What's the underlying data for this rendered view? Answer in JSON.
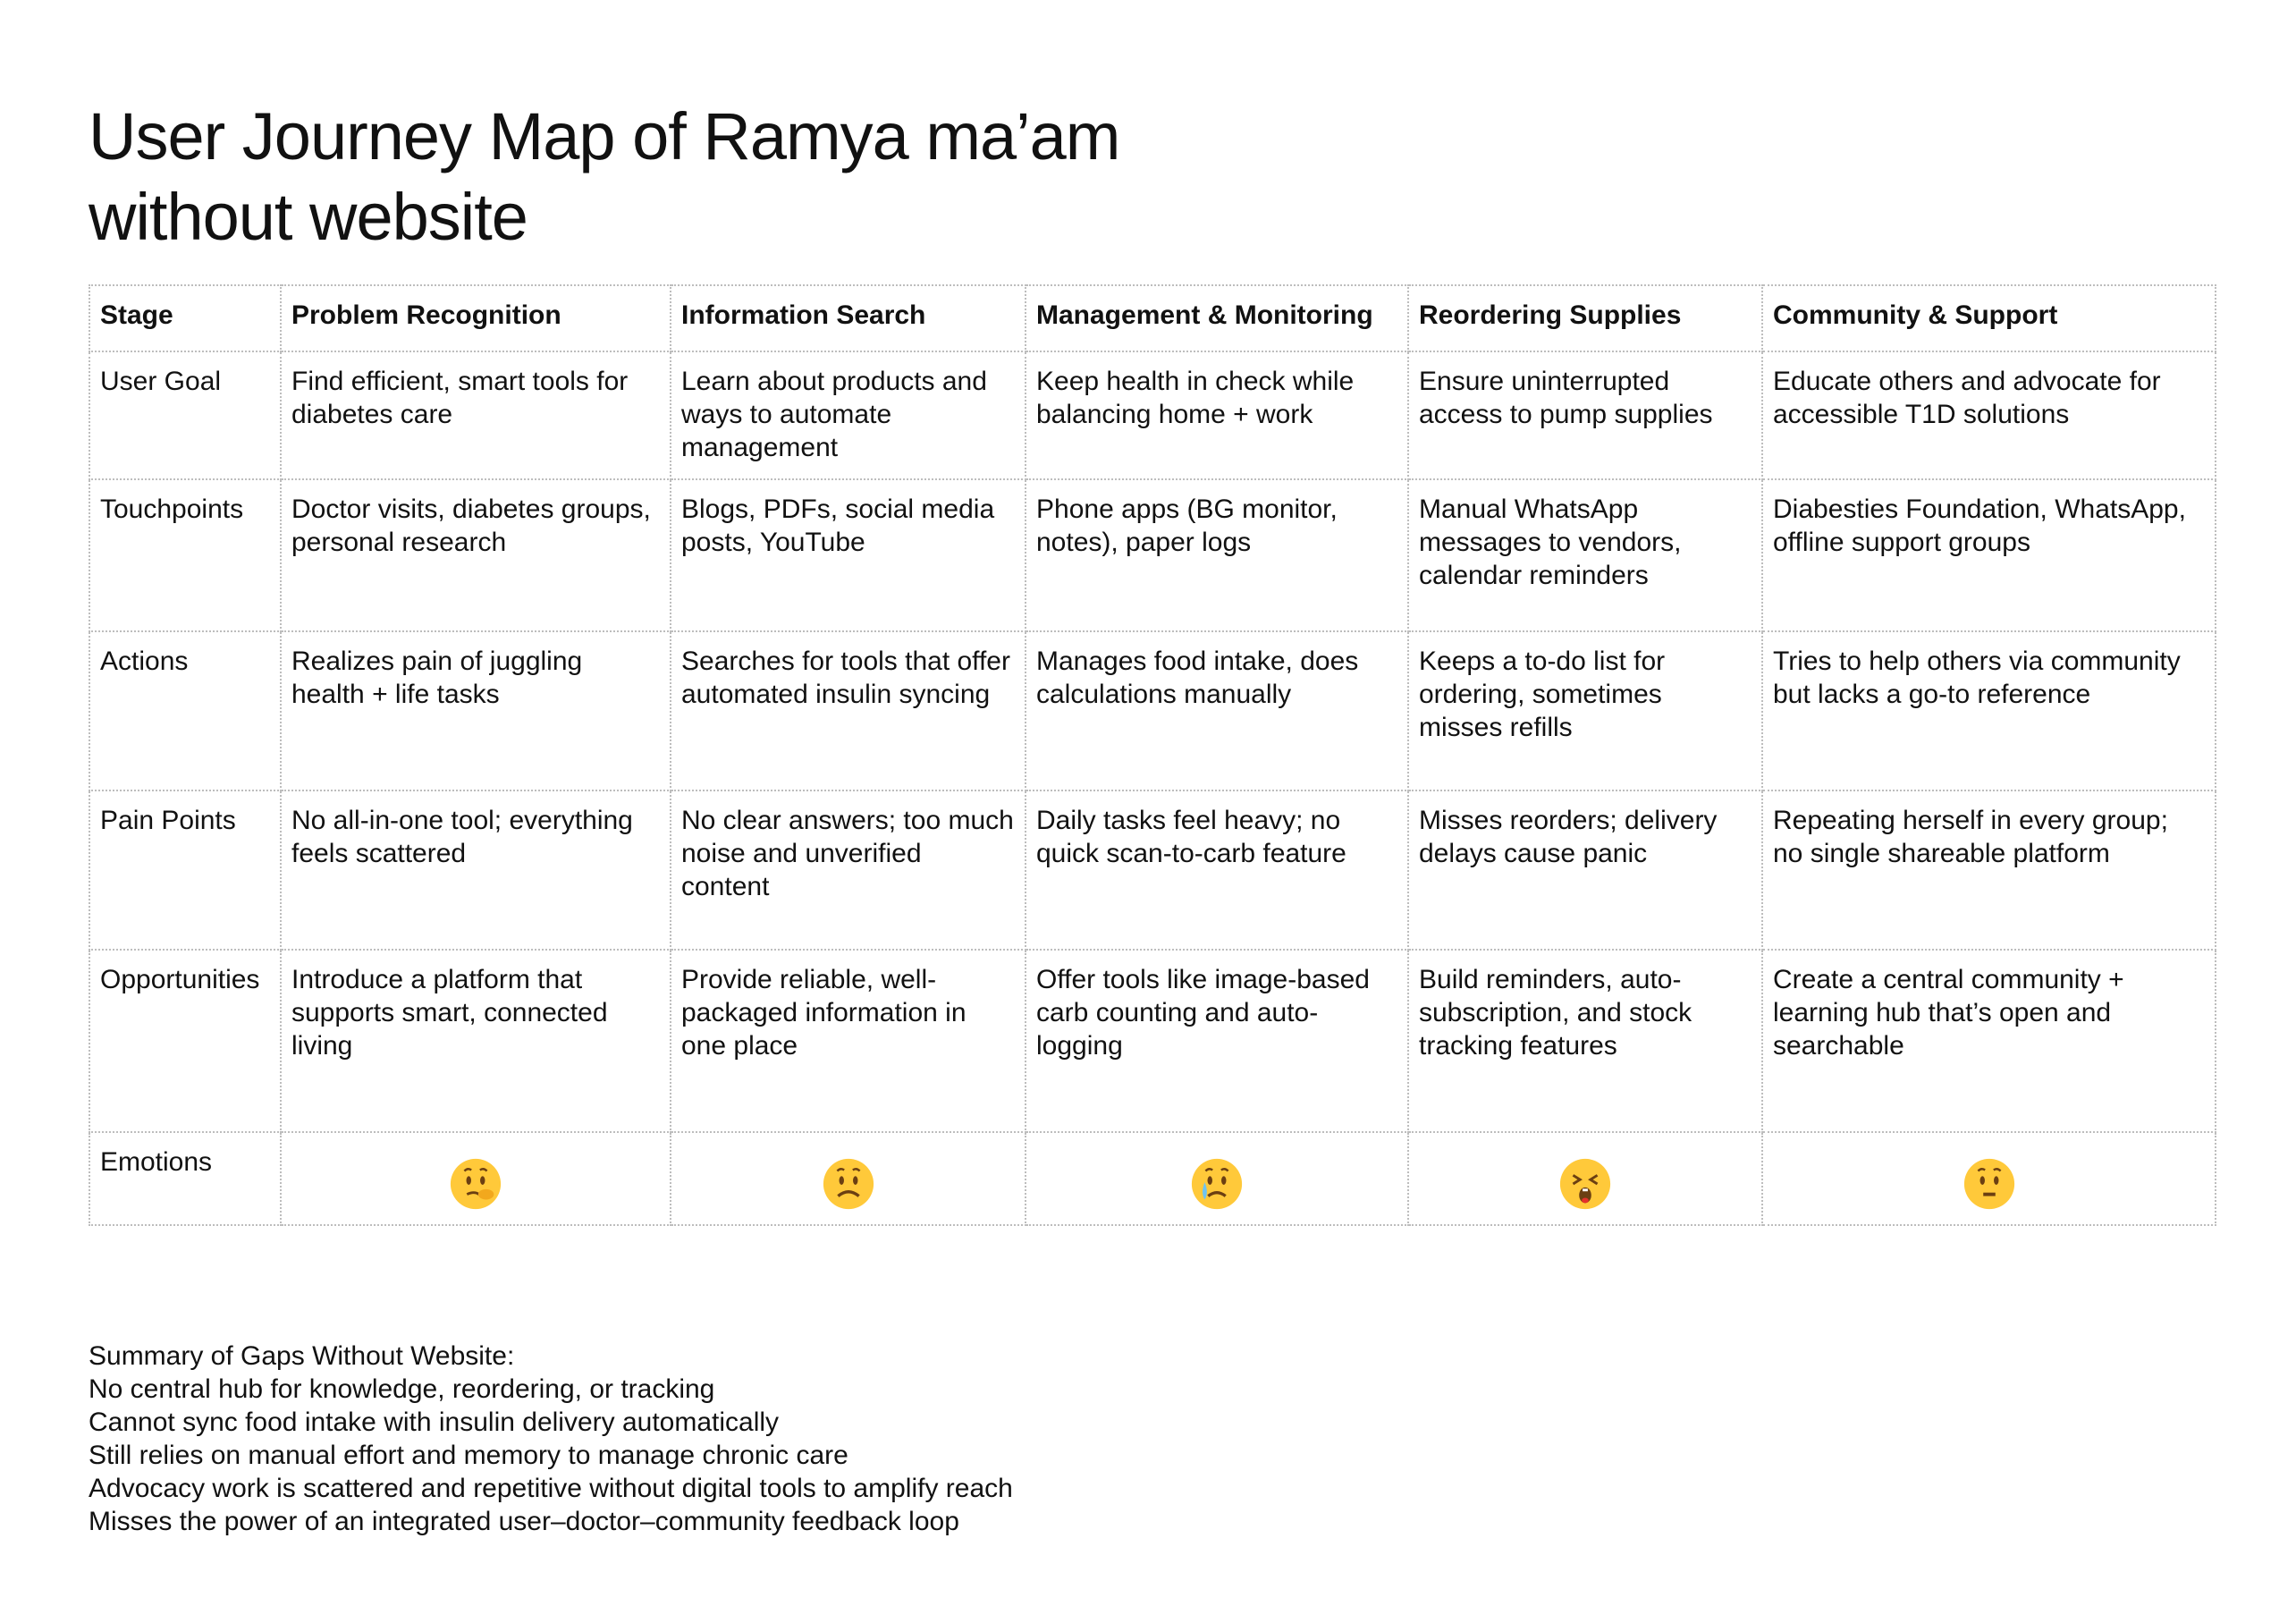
{
  "title": [
    "User Journey Map of Ramya ma’am",
    "without website"
  ],
  "table": {
    "headers": [
      "Stage",
      "Problem Recognition",
      "Information Search",
      "Management & Monitoring",
      "Reordering Supplies",
      "Community & Support"
    ],
    "rows": [
      {
        "label": "User Goal",
        "cells": [
          "Find efficient, smart tools for diabetes care",
          "Learn about products and ways to automate management",
          "Keep health in check while balancing home + work",
          "Ensure uninterrupted access to pump supplies",
          "Educate others and advocate for accessible T1D solutions"
        ]
      },
      {
        "label": "Touchpoints",
        "cells": [
          "Doctor visits, diabetes groups, personal research",
          "Blogs, PDFs, social media posts, YouTube",
          "Phone apps (BG monitor, notes), paper logs",
          "Manual WhatsApp messages to vendors, calendar reminders",
          "Diabesties Foundation, WhatsApp, offline support groups"
        ]
      },
      {
        "label": "Actions",
        "cells": [
          "Realizes pain of juggling health + life tasks",
          "Searches for tools that offer automated insulin syncing",
          "Manages food intake, does calculations manually",
          "Keeps a to-do list for ordering, sometimes misses refills",
          "Tries to help others via community but lacks a go-to reference"
        ]
      },
      {
        "label": "Pain Points",
        "cells": [
          "No all-in-one tool; everything feels scattered",
          "No clear answers; too much noise and unverified content",
          "Daily tasks feel heavy; no quick scan-to-carb feature",
          "Misses reorders; delivery delays cause panic",
          "Repeating herself in every group; no single shareable platform"
        ]
      },
      {
        "label": "Opportunities",
        "cells": [
          "Introduce a platform that supports smart, connected living",
          "Provide reliable, well-packaged information in one place",
          "Offer tools like image-based carb counting and auto-logging",
          "Build reminders, auto-subscription, and stock tracking features",
          "Create a central community + learning hub that’s open and searchable"
        ]
      }
    ],
    "emotions_label": "Emotions",
    "emotions": [
      "thinking-face-icon",
      "worried-face-icon",
      "crying-face-icon",
      "tired-face-icon",
      "raised-eyebrow-face-icon"
    ]
  },
  "summary": {
    "heading": "Summary of Gaps Without Website:",
    "items": [
      "No central hub for knowledge, reordering, or tracking",
      "Cannot sync food intake with insulin delivery automatically",
      "Still relies on manual effort and memory to manage chronic care",
      "Advocacy work is scattered and repetitive without digital tools to amplify reach",
      "Misses the power of an integrated user–doctor–community feedback loop"
    ]
  },
  "colors": {
    "emoji_yellow": "#FFC93A",
    "emoji_feature": "#6B3F12",
    "border": "#BDBDBD"
  }
}
